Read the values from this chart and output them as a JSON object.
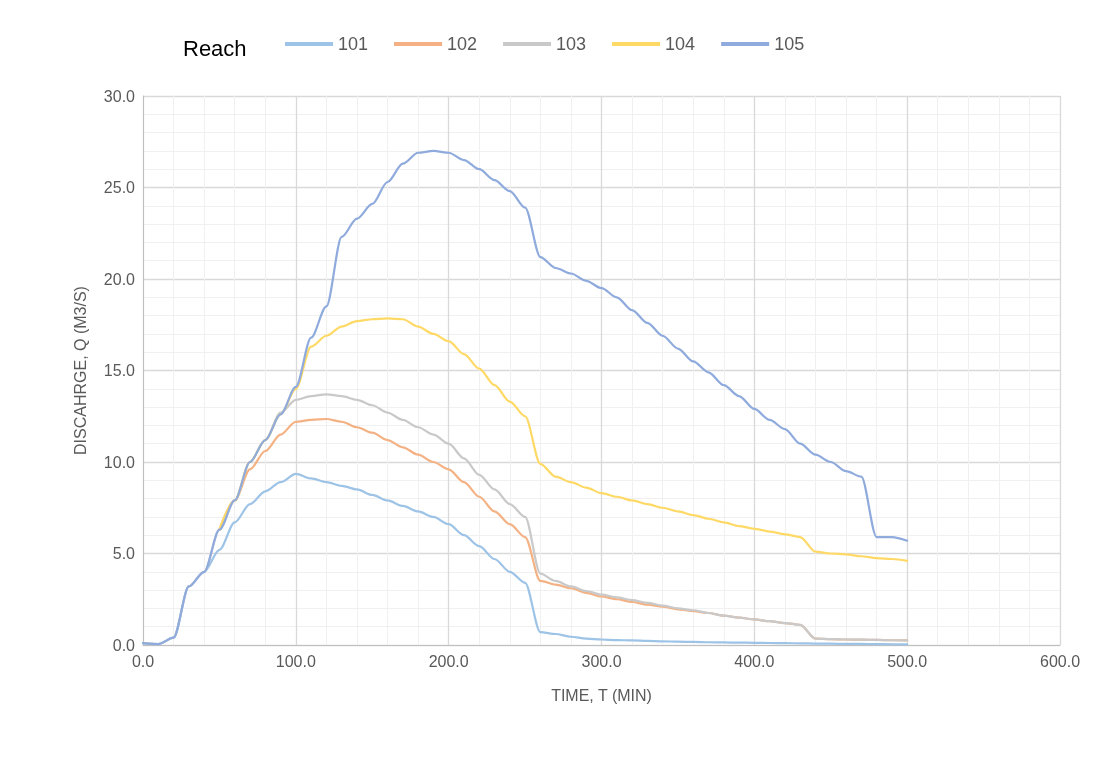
{
  "chart_data": {
    "type": "line",
    "xlabel": "TIME, T (MIN)",
    "ylabel": "DISCAHRGE, Q (M3/S)",
    "legend_title": "Reach",
    "legend": "top",
    "grid": true,
    "marker": "none",
    "line_style": "solid",
    "x": [
      0,
      10,
      20,
      30,
      40,
      50,
      60,
      70,
      80,
      90,
      100,
      110,
      120,
      130,
      140,
      150,
      160,
      170,
      180,
      190,
      200,
      210,
      220,
      230,
      240,
      250,
      260,
      270,
      280,
      290,
      300,
      310,
      320,
      330,
      340,
      350,
      360,
      370,
      380,
      390,
      400,
      410,
      420,
      430,
      440,
      450,
      460,
      470,
      480,
      490,
      500
    ],
    "xlim": [
      0,
      600
    ],
    "ylim": [
      0,
      30
    ],
    "xticks": [
      {
        "value": 0,
        "label": "0.0"
      },
      {
        "value": 100,
        "label": "100.0"
      },
      {
        "value": 200,
        "label": "200.0"
      },
      {
        "value": 300,
        "label": "300.0"
      },
      {
        "value": 400,
        "label": "400.0"
      },
      {
        "value": 500,
        "label": "500.0"
      },
      {
        "value": 600,
        "label": "600.0"
      }
    ],
    "yticks": [
      {
        "value": 0,
        "label": "0.0"
      },
      {
        "value": 5,
        "label": "5.0"
      },
      {
        "value": 10,
        "label": "10.0"
      },
      {
        "value": 15,
        "label": "15.0"
      },
      {
        "value": 20,
        "label": "20.0"
      },
      {
        "value": 25,
        "label": "25.0"
      },
      {
        "value": 30,
        "label": "30.0"
      }
    ],
    "series": [
      {
        "name": "101",
        "color": "#9dc3e6",
        "values": [
          0.1,
          0.05,
          0.4,
          3.2,
          4.0,
          5.2,
          6.7,
          7.7,
          8.4,
          8.9,
          9.35,
          9.1,
          8.9,
          8.7,
          8.5,
          8.2,
          7.9,
          7.6,
          7.3,
          7.0,
          6.6,
          6.0,
          5.4,
          4.7,
          4.0,
          3.4,
          0.7,
          0.6,
          0.45,
          0.35,
          0.3,
          0.27,
          0.25,
          0.22,
          0.2,
          0.18,
          0.17,
          0.15,
          0.14,
          0.13,
          0.12,
          0.11,
          0.1,
          0.09,
          0.08,
          0.07,
          0.06,
          0.06,
          0.05,
          0.04,
          0.03
        ]
      },
      {
        "name": "102",
        "color": "#f4b183",
        "values": [
          null,
          null,
          null,
          null,
          null,
          6.3,
          7.9,
          9.6,
          10.6,
          11.5,
          12.2,
          12.3,
          12.35,
          12.2,
          11.9,
          11.6,
          11.2,
          10.8,
          10.4,
          10.0,
          9.6,
          8.9,
          8.1,
          7.3,
          6.6,
          5.9,
          3.5,
          3.3,
          3.1,
          2.85,
          2.65,
          2.5,
          2.35,
          2.2,
          2.1,
          1.95,
          1.85,
          1.75,
          1.6,
          1.5,
          1.4,
          1.3,
          1.2,
          1.1,
          0.35,
          0.32,
          0.3,
          0.29,
          0.28,
          0.26,
          0.25
        ]
      },
      {
        "name": "103",
        "color": "#c9c9c9",
        "values": [
          0.1,
          0.05,
          0.4,
          3.2,
          4.0,
          6.3,
          7.9,
          10.0,
          11.2,
          12.7,
          13.4,
          13.6,
          13.7,
          13.6,
          13.4,
          13.1,
          12.7,
          12.3,
          11.9,
          11.5,
          11.0,
          10.2,
          9.3,
          8.5,
          7.7,
          7.0,
          3.9,
          3.5,
          3.2,
          2.95,
          2.75,
          2.6,
          2.45,
          2.3,
          2.15,
          2.0,
          1.9,
          1.75,
          1.6,
          1.5,
          1.4,
          1.3,
          1.2,
          1.1,
          0.35,
          0.32,
          0.3,
          0.29,
          0.28,
          0.26,
          0.25
        ]
      },
      {
        "name": "104",
        "color": "#ffd966",
        "values": [
          null,
          null,
          null,
          null,
          null,
          6.3,
          7.9,
          10.0,
          11.2,
          12.6,
          14.0,
          16.3,
          16.9,
          17.4,
          17.7,
          17.8,
          17.85,
          17.8,
          17.4,
          17.0,
          16.6,
          15.9,
          15.1,
          14.2,
          13.3,
          12.5,
          9.9,
          9.2,
          8.9,
          8.6,
          8.3,
          8.1,
          7.9,
          7.7,
          7.5,
          7.3,
          7.1,
          6.9,
          6.7,
          6.5,
          6.35,
          6.2,
          6.05,
          5.9,
          5.1,
          5.0,
          4.95,
          4.85,
          4.75,
          4.7,
          4.6
        ]
      },
      {
        "name": "105",
        "color": "#8faadc",
        "values": [
          0.1,
          0.05,
          0.4,
          3.2,
          4.0,
          6.3,
          7.9,
          10.0,
          11.2,
          12.6,
          14.1,
          16.8,
          18.5,
          22.3,
          23.3,
          24.1,
          25.3,
          26.3,
          26.9,
          27.0,
          26.9,
          26.5,
          26.0,
          25.4,
          24.8,
          23.9,
          21.2,
          20.6,
          20.3,
          19.9,
          19.5,
          19.0,
          18.3,
          17.6,
          16.9,
          16.2,
          15.5,
          14.9,
          14.2,
          13.6,
          12.9,
          12.3,
          11.8,
          11.0,
          10.4,
          10.0,
          9.5,
          9.2,
          5.9,
          5.9,
          5.7
        ]
      }
    ]
  }
}
